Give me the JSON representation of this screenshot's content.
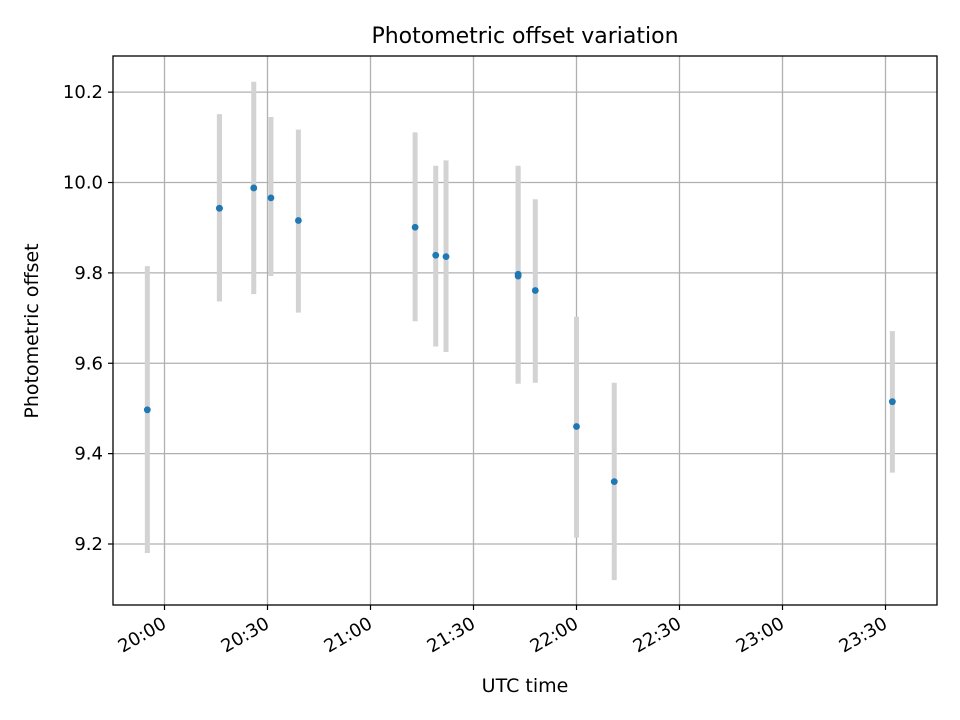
{
  "chart_data": {
    "type": "scatter",
    "title": "Photometric offset variation",
    "xlabel": "UTC time",
    "ylabel": "Photometric offset",
    "xlim": [
      "19:45",
      "23:45"
    ],
    "ylim": [
      9.065,
      10.28
    ],
    "x_ticks": [
      "20:00",
      "20:30",
      "21:00",
      "21:30",
      "22:00",
      "22:30",
      "23:00",
      "23:30"
    ],
    "y_ticks": [
      "9.2",
      "9.4",
      "9.6",
      "9.8",
      "10.0",
      "10.2"
    ],
    "grid": true,
    "point_color": "#1f77b4",
    "errorbar_color": "#d3d3d3",
    "points": [
      {
        "x": "19:55",
        "y": 9.497,
        "ylow": 9.18,
        "yhigh": 9.815
      },
      {
        "x": "20:16",
        "y": 9.943,
        "ylow": 9.737,
        "yhigh": 10.151
      },
      {
        "x": "20:16",
        "y": 9.943,
        "ylow": 9.737,
        "yhigh": 10.151
      },
      {
        "x": "20:26",
        "y": 9.988,
        "ylow": 9.753,
        "yhigh": 10.223
      },
      {
        "x": "20:31",
        "y": 9.966,
        "ylow": 9.793,
        "yhigh": 10.145
      },
      {
        "x": "20:39",
        "y": 9.916,
        "ylow": 9.712,
        "yhigh": 10.117
      },
      {
        "x": "21:13",
        "y": 9.901,
        "ylow": 9.693,
        "yhigh": 10.111
      },
      {
        "x": "21:19",
        "y": 9.839,
        "ylow": 9.637,
        "yhigh": 10.037
      },
      {
        "x": "21:22",
        "y": 9.836,
        "ylow": 9.625,
        "yhigh": 10.049
      },
      {
        "x": "21:43",
        "y": 9.797,
        "ylow": 9.555,
        "yhigh": 10.037
      },
      {
        "x": "21:43",
        "y": 9.793,
        "ylow": 9.555,
        "yhigh": 10.029
      },
      {
        "x": "21:48",
        "y": 9.761,
        "ylow": 9.557,
        "yhigh": 9.963
      },
      {
        "x": "22:00",
        "y": 9.46,
        "ylow": 9.214,
        "yhigh": 9.703
      },
      {
        "x": "22:11",
        "y": 9.338,
        "ylow": 9.12,
        "yhigh": 9.557
      },
      {
        "x": "23:32",
        "y": 9.515,
        "ylow": 9.358,
        "yhigh": 9.671
      }
    ]
  }
}
